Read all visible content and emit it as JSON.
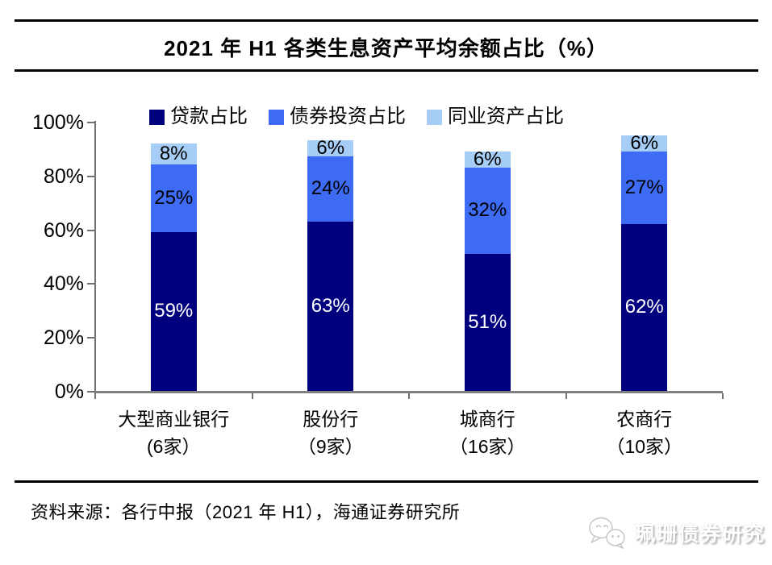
{
  "title": "2021 年 H1 各类生息资产平均余额占比（%）",
  "chart_data": {
    "type": "bar",
    "stacked": true,
    "title": "2021 年 H1 各类生息资产平均余额占比（%）",
    "categories": [
      "大型商业银行",
      "股份行",
      "城商行",
      "农商行"
    ],
    "category_sublabels": [
      "(6家）",
      "（9家）",
      "（16家）",
      "（10家）"
    ],
    "series": [
      {
        "name": "贷款占比",
        "color": "#00007e",
        "label_color": "#ffffff",
        "values": [
          59,
          63,
          51,
          62
        ]
      },
      {
        "name": "债券投资占比",
        "color": "#3d6bf3",
        "label_color": "#000000",
        "values": [
          25,
          24,
          32,
          27
        ]
      },
      {
        "name": "同业资产占比",
        "color": "#a5cdf5",
        "label_color": "#000000",
        "values": [
          8,
          6,
          6,
          6
        ]
      }
    ],
    "value_suffix": "%",
    "y_ticks": [
      0,
      20,
      40,
      60,
      80,
      100
    ],
    "y_tick_suffix": "%",
    "ylim": [
      0,
      100
    ],
    "legend_position": "top",
    "grid": false,
    "axis_color": "#707070",
    "baseline_color": "#808080"
  },
  "footer": {
    "source": "资料来源：各行中报（2021 年 H1），海通证券研究所"
  },
  "watermark": {
    "brand": "珮珊债券研究",
    "icon": "wechat-bubbles-icon"
  }
}
